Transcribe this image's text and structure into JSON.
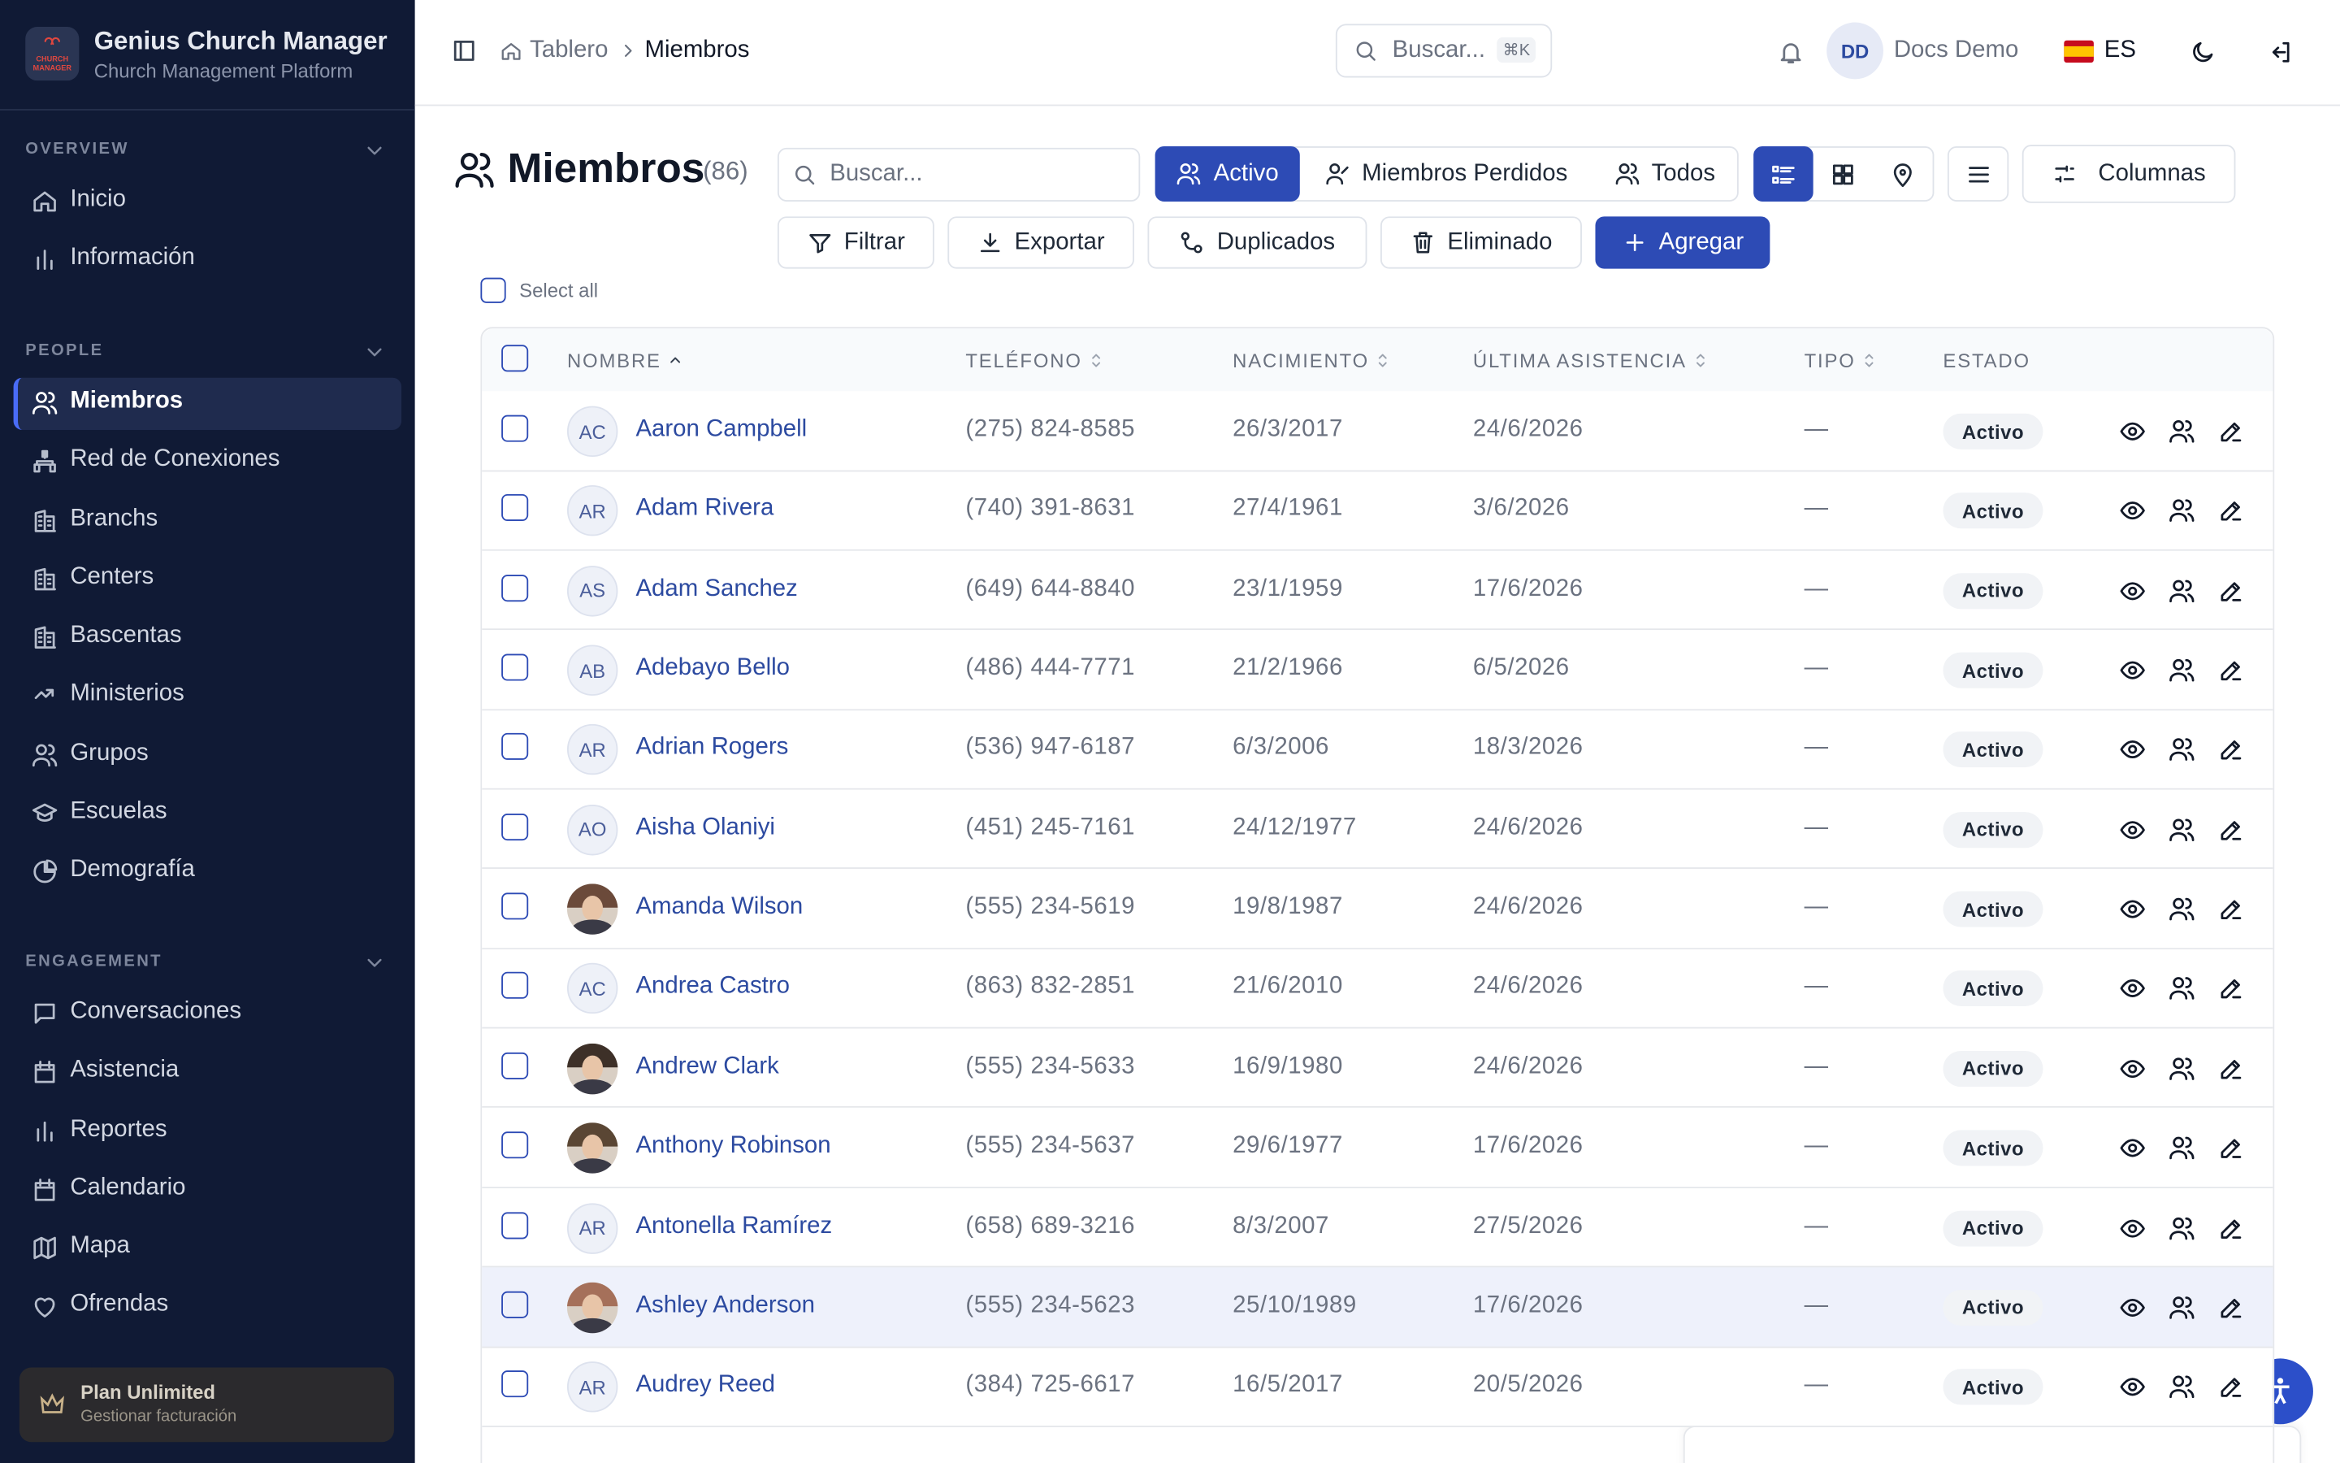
{
  "app": {
    "title": "Genius Church Manager",
    "subtitle": "Church Management Platform",
    "logo_text": [
      "CHURCH",
      "MANAGER"
    ]
  },
  "sidebar": {
    "sections": [
      {
        "title": "OVERVIEW",
        "items": [
          {
            "label": "Inicio"
          },
          {
            "label": "Información"
          }
        ]
      },
      {
        "title": "PEOPLE",
        "items": [
          {
            "label": "Miembros",
            "active": true
          },
          {
            "label": "Red de Conexiones"
          },
          {
            "label": "Branchs"
          },
          {
            "label": "Centers"
          },
          {
            "label": "Bascentas"
          },
          {
            "label": "Ministerios"
          },
          {
            "label": "Grupos"
          },
          {
            "label": "Escuelas"
          },
          {
            "label": "Demografía"
          }
        ]
      },
      {
        "title": "ENGAGEMENT",
        "items": [
          {
            "label": "Conversaciones"
          },
          {
            "label": "Asistencia"
          },
          {
            "label": "Reportes"
          },
          {
            "label": "Calendario"
          },
          {
            "label": "Mapa"
          },
          {
            "label": "Ofrendas"
          }
        ]
      }
    ],
    "plan": {
      "title": "Plan Unlimited",
      "subtitle": "Gestionar facturación"
    }
  },
  "header": {
    "breadcrumb": [
      "Tablero",
      "Miembros"
    ],
    "search": "Buscar...",
    "shortcut": "⌘K",
    "user_initials": "DD",
    "user_name": "Docs Demo",
    "language": "ES"
  },
  "page": {
    "title": "Miembros",
    "count": "(86)",
    "search": "Buscar...",
    "tabs": [
      "Activo",
      "Miembros Perdidos",
      "Todos"
    ],
    "columns_button": "Columnas",
    "actions": [
      "Filtrar",
      "Exportar",
      "Duplicados",
      "Eliminado",
      "Agregar"
    ],
    "select_all": "Select all"
  },
  "table": {
    "columns": [
      {
        "label": "NOMBRE",
        "sort": "asc"
      },
      {
        "label": "TELÉFONO",
        "sort": "none"
      },
      {
        "label": "NACIMIENTO",
        "sort": "none"
      },
      {
        "label": "ÚLTIMA ASISTENCIA",
        "sort": "none"
      },
      {
        "label": "TIPO",
        "sort": "none"
      },
      {
        "label": "ESTADO"
      }
    ],
    "rows": [
      {
        "initials": "AC",
        "name": "Aaron Campbell",
        "phone": "(275) 824-8585",
        "birth": "26/3/2017",
        "last": "24/6/2026",
        "type": "—",
        "status": "Activo"
      },
      {
        "initials": "AR",
        "name": "Adam Rivera",
        "phone": "(740) 391-8631",
        "birth": "27/4/1961",
        "last": "3/6/2026",
        "type": "—",
        "status": "Activo"
      },
      {
        "initials": "AS",
        "name": "Adam Sanchez",
        "phone": "(649) 644-8840",
        "birth": "23/1/1959",
        "last": "17/6/2026",
        "type": "—",
        "status": "Activo"
      },
      {
        "initials": "AB",
        "name": "Adebayo Bello",
        "phone": "(486) 444-7771",
        "birth": "21/2/1966",
        "last": "6/5/2026",
        "type": "—",
        "status": "Activo"
      },
      {
        "initials": "AR",
        "name": "Adrian Rogers",
        "phone": "(536) 947-6187",
        "birth": "6/3/2006",
        "last": "18/3/2026",
        "type": "—",
        "status": "Activo"
      },
      {
        "initials": "AO",
        "name": "Aisha Olaniyi",
        "phone": "(451) 245-7161",
        "birth": "24/12/1977",
        "last": "24/6/2026",
        "type": "—",
        "status": "Activo"
      },
      {
        "name": "Amanda Wilson",
        "phone": "(555) 234-5619",
        "birth": "19/8/1987",
        "last": "24/6/2026",
        "type": "—",
        "status": "Activo"
      },
      {
        "initials": "AC",
        "name": "Andrea Castro",
        "phone": "(863) 832-2851",
        "birth": "21/6/2010",
        "last": "24/6/2026",
        "type": "—",
        "status": "Activo"
      },
      {
        "name": "Andrew Clark",
        "phone": "(555) 234-5633",
        "birth": "16/9/1980",
        "last": "24/6/2026",
        "type": "—",
        "status": "Activo"
      },
      {
        "name": "Anthony Robinson",
        "phone": "(555) 234-5637",
        "birth": "29/6/1977",
        "last": "17/6/2026",
        "type": "—",
        "status": "Activo"
      },
      {
        "initials": "AR",
        "name": "Antonella Ramírez",
        "phone": "(658) 689-3216",
        "birth": "8/3/2007",
        "last": "27/5/2026",
        "type": "—",
        "status": "Activo"
      },
      {
        "name": "Ashley Anderson",
        "phone": "(555) 234-5623",
        "birth": "25/10/1989",
        "last": "17/6/2026",
        "type": "—",
        "status": "Activo",
        "highlighted": true
      },
      {
        "initials": "AR",
        "name": "Audrey Reed",
        "phone": "(384) 725-6617",
        "birth": "16/5/2017",
        "last": "20/5/2026",
        "type": "—",
        "status": "Activo"
      }
    ]
  }
}
